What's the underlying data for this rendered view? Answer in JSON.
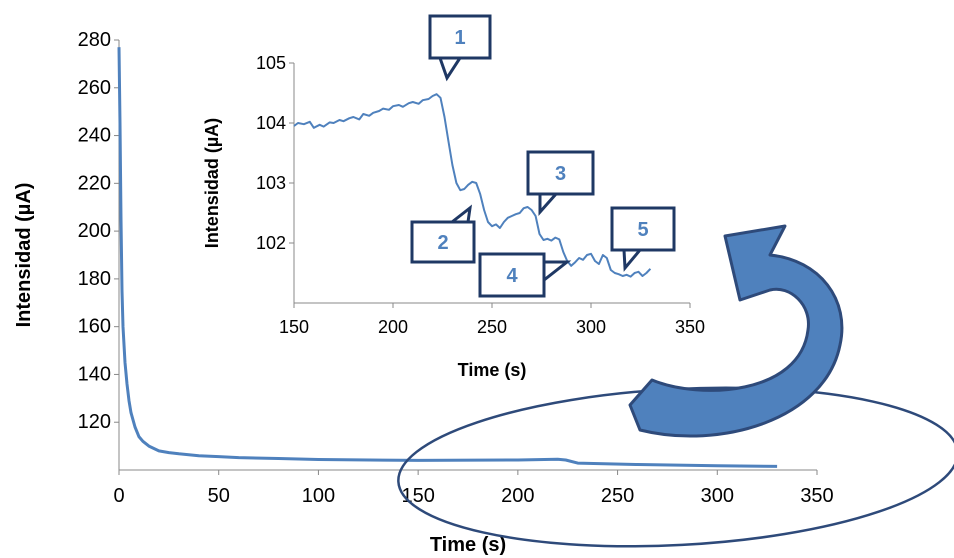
{
  "colors": {
    "series": "#4f81bd",
    "axis": "#888888",
    "callout_border": "#1f3864",
    "callout_text": "#4f81bd",
    "ellipse": "#2e4a7a",
    "arrow_fill": "#4f81bd",
    "arrow_stroke": "#2e4a7a"
  },
  "chart_data": [
    {
      "type": "line",
      "title": "",
      "xlabel": "Time (s)",
      "ylabel": "Intensidad (µA)",
      "xlim": [
        0,
        350
      ],
      "ylim": [
        100,
        280
      ],
      "x_ticks": [
        0,
        50,
        100,
        150,
        200,
        250,
        300,
        350
      ],
      "y_ticks": [
        120,
        140,
        160,
        180,
        200,
        220,
        240,
        260,
        280
      ],
      "grid": false,
      "legend": "none",
      "series": [
        {
          "x": [
            0,
            0.5,
            1,
            1.5,
            2,
            3,
            4,
            5,
            6,
            8,
            10,
            12,
            15,
            20,
            25,
            30,
            40,
            50,
            60,
            80,
            100,
            150,
            200,
            220,
            224,
            230,
            260,
            300,
            330
          ],
          "values": [
            277,
            245,
            205,
            175,
            160,
            145,
            136,
            129,
            124,
            118,
            114,
            112,
            110,
            108,
            107.3,
            106.8,
            106,
            105.6,
            105.2,
            104.8,
            104.4,
            104,
            104.2,
            104.5,
            104.2,
            102.9,
            102.3,
            101.8,
            101.5
          ]
        }
      ]
    },
    {
      "type": "line",
      "title": "",
      "xlabel": "Time (s)",
      "ylabel": "Intensidad (µA)",
      "xlim": [
        150,
        350
      ],
      "ylim": [
        101,
        105
      ],
      "x_ticks": [
        150,
        200,
        250,
        300,
        350
      ],
      "y_ticks": [
        102,
        103,
        104,
        105
      ],
      "grid": false,
      "legend": "none",
      "series": [
        {
          "x": [
            150,
            152,
            155,
            158,
            160,
            163,
            165,
            168,
            170,
            173,
            175,
            178,
            180,
            183,
            185,
            188,
            190,
            193,
            195,
            198,
            200,
            203,
            205,
            208,
            210,
            213,
            215,
            218,
            220,
            222,
            224,
            226,
            228,
            230,
            232,
            234,
            236,
            238,
            240,
            242,
            244,
            246,
            248,
            250,
            252,
            254,
            256,
            258,
            260,
            262,
            264,
            266,
            268,
            270,
            272,
            274,
            276,
            278,
            280,
            282,
            284,
            286,
            288,
            290,
            292,
            294,
            296,
            298,
            300,
            302,
            304,
            306,
            308,
            310,
            312,
            314,
            316,
            318,
            320,
            322,
            324,
            326,
            328,
            330
          ],
          "values": [
            103.95,
            104.0,
            103.98,
            104.02,
            103.92,
            103.97,
            103.94,
            104.01,
            104.0,
            104.05,
            104.03,
            104.08,
            104.1,
            104.06,
            104.15,
            104.12,
            104.17,
            104.2,
            104.24,
            104.22,
            104.28,
            104.3,
            104.27,
            104.33,
            104.35,
            104.32,
            104.38,
            104.4,
            104.45,
            104.48,
            104.42,
            104.1,
            103.7,
            103.3,
            103.0,
            102.88,
            102.9,
            102.97,
            103.02,
            103.0,
            102.82,
            102.55,
            102.35,
            102.28,
            102.31,
            102.25,
            102.35,
            102.42,
            102.45,
            102.48,
            102.5,
            102.58,
            102.6,
            102.55,
            102.45,
            102.15,
            102.05,
            102.07,
            102.04,
            102.09,
            102.06,
            101.85,
            101.7,
            101.62,
            101.68,
            101.75,
            101.72,
            101.8,
            101.82,
            101.7,
            101.65,
            101.8,
            101.75,
            101.55,
            101.5,
            101.48,
            101.45,
            101.47,
            101.44,
            101.5,
            101.52,
            101.45,
            101.5,
            101.57
          ]
        }
      ]
    }
  ],
  "callouts": [
    {
      "label": "1"
    },
    {
      "label": "2"
    },
    {
      "label": "3"
    },
    {
      "label": "4"
    },
    {
      "label": "5"
    }
  ]
}
